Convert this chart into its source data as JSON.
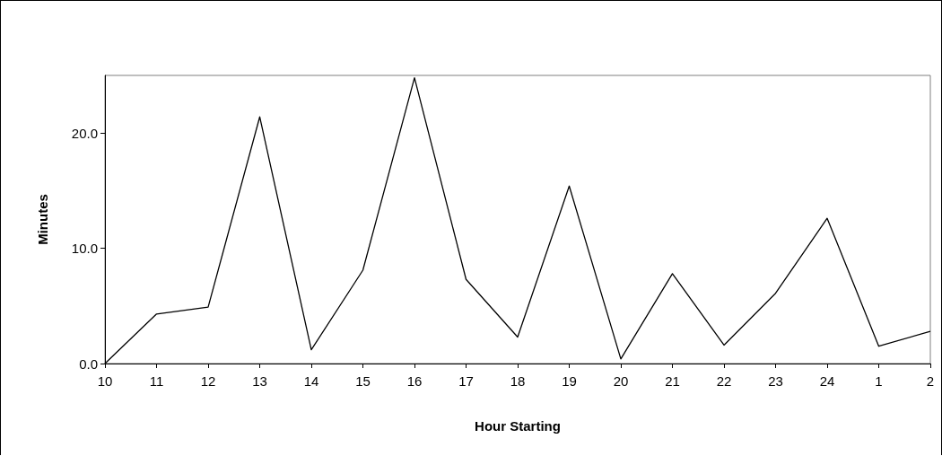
{
  "chart_data": {
    "type": "line",
    "xlabel": "Hour Starting",
    "ylabel": "Minutes",
    "categories": [
      "10",
      "11",
      "12",
      "13",
      "14",
      "15",
      "16",
      "17",
      "18",
      "19",
      "20",
      "21",
      "22",
      "23",
      "24",
      "1",
      "2"
    ],
    "series": [
      {
        "color": "#000000",
        "values": [
          0,
          4.3,
          4.9,
          21.4,
          1.2,
          8.1,
          24.8,
          7.3,
          2.3,
          15.4,
          0.4,
          7.8,
          1.6,
          6.1,
          12.6,
          1.5,
          2.8
        ]
      }
    ],
    "ylim": [
      0,
      25
    ],
    "yticks": [
      {
        "value": 0,
        "label": "0.0"
      },
      {
        "value": 10,
        "label": "10.0"
      },
      {
        "value": 20,
        "label": "20.0"
      }
    ],
    "grid": false,
    "marker": "none",
    "line_style": "solid"
  }
}
